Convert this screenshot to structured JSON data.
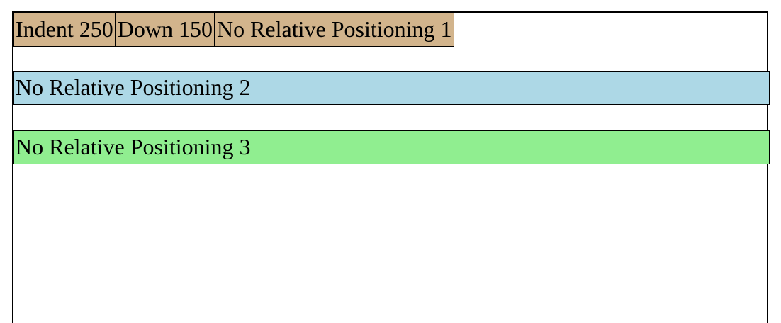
{
  "boxes": {
    "indent": "Indent 250",
    "down": "Down 150",
    "no_rel_1": "No Relative Positioning 1"
  },
  "rows": {
    "no_rel_2": "No Relative Positioning 2",
    "no_rel_3": "No Relative Positioning 3"
  },
  "colors": {
    "tan": "#d2b48c",
    "light_blue": "#add8e6",
    "light_green": "#90ee90",
    "border": "#000000"
  }
}
